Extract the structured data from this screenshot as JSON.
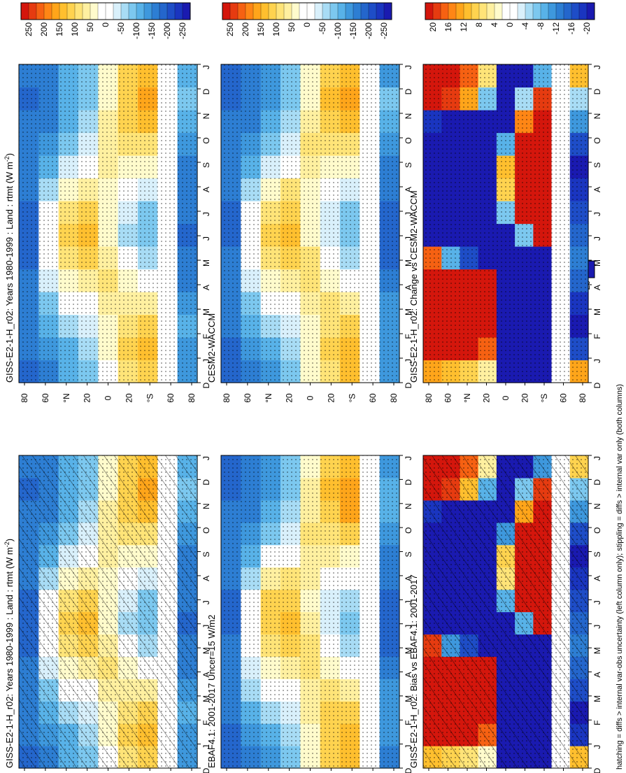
{
  "figure": {
    "footnote": "hatching = diffs > internal var-obs uncertainty (left column only); stippling = diffs > internal var only (both columns)"
  },
  "colors": {
    "positive_ramp": [
      "#ffffff",
      "#fffbcc",
      "#fff0a0",
      "#ffe478",
      "#ffd34f",
      "#ffbf2e",
      "#ffa51a",
      "#ff8615",
      "#f66112",
      "#e63b10",
      "#d4160c"
    ],
    "negative_ramp": [
      "#ffffff",
      "#d9f0fb",
      "#a8dcf5",
      "#7cc8ef",
      "#58b2e8",
      "#3e98dd",
      "#2d7ed3",
      "#2466cc",
      "#1e4dc7",
      "#1a35c0",
      "#1a1ab0"
    ]
  },
  "colorbars": {
    "absolute": {
      "labels": [
        "250",
        "200",
        "150",
        "100",
        "50",
        "0",
        "-50",
        "-100",
        "-150",
        "-200",
        "-250"
      ]
    },
    "difference": {
      "labels": [
        "20",
        "16",
        "12",
        "8",
        "4",
        "0",
        "-4",
        "-8",
        "-12",
        "-16",
        "-20"
      ]
    }
  },
  "axes": {
    "months": [
      "D",
      "J",
      "F",
      "M",
      "A",
      "M",
      "J",
      "J",
      "A",
      "S",
      "O",
      "N",
      "D",
      "J"
    ],
    "lat_labels": [
      "80",
      "60",
      "°N",
      "20",
      "0",
      "20",
      "°S",
      "60",
      "80"
    ]
  },
  "chart_data": [
    {
      "type": "heatmap",
      "panel": "top-left",
      "title": "GISS-E2-1-H_r02: Years 1980-1999 : Land : rtmt (W m",
      "title_sup": "-2",
      "title_end": ")",
      "x": [
        "D",
        "J",
        "F",
        "M",
        "A",
        "M",
        "J",
        "J",
        "A",
        "S",
        "O",
        "N",
        "D",
        "J"
      ],
      "y": [
        80,
        60,
        40,
        20,
        0,
        -20,
        -40,
        -60,
        -80
      ],
      "z": [
        [
          -180,
          -170,
          -165,
          -150,
          -160,
          -175,
          -190,
          -185,
          -170,
          -160,
          -150,
          -165,
          -180,
          -170
        ],
        [
          -150,
          -130,
          -110,
          -80,
          -40,
          -10,
          0,
          -20,
          -60,
          -100,
          -130,
          -150,
          -160,
          -150
        ],
        [
          -120,
          -100,
          -70,
          -20,
          30,
          80,
          110,
          90,
          40,
          -30,
          -80,
          -110,
          -120,
          -120
        ],
        [
          -80,
          -60,
          -30,
          10,
          60,
          100,
          130,
          110,
          70,
          10,
          -40,
          -70,
          -80,
          -80
        ],
        [
          20,
          30,
          40,
          60,
          80,
          70,
          40,
          30,
          40,
          60,
          70,
          60,
          40,
          30
        ],
        [
          90,
          100,
          90,
          70,
          30,
          -20,
          -50,
          -40,
          0,
          40,
          80,
          110,
          120,
          100
        ],
        [
          120,
          130,
          110,
          60,
          0,
          -60,
          -90,
          -80,
          -30,
          30,
          90,
          140,
          160,
          130
        ],
        [
          null,
          null,
          null,
          null,
          null,
          null,
          null,
          null,
          null,
          null,
          null,
          null,
          null,
          null
        ],
        [
          -140,
          -130,
          -120,
          -130,
          -150,
          -170,
          -180,
          -170,
          -160,
          -150,
          -130,
          -100,
          -90,
          -120
        ]
      ],
      "zlim": [
        -275,
        275
      ]
    },
    {
      "type": "heatmap",
      "panel": "top-right",
      "title": "GISS-E2-1-H_r02: Years 1980-1999 : Land : rtmt (W m",
      "title_sup": "-2",
      "title_end": ")",
      "x": [
        "D",
        "J",
        "F",
        "M",
        "A",
        "M",
        "J",
        "J",
        "A",
        "S",
        "O",
        "N",
        "D",
        "J"
      ],
      "y": [
        80,
        60,
        40,
        20,
        0,
        -20,
        -40,
        -60,
        -80
      ],
      "z": [
        [
          -180,
          -170,
          -165,
          -150,
          -160,
          -175,
          -190,
          -185,
          -170,
          -160,
          -150,
          -165,
          -180,
          -170
        ],
        [
          -150,
          -130,
          -110,
          -80,
          -40,
          -10,
          0,
          -20,
          -60,
          -100,
          -130,
          -150,
          -160,
          -150
        ],
        [
          -120,
          -100,
          -70,
          -20,
          30,
          80,
          110,
          90,
          40,
          -30,
          -80,
          -110,
          -120,
          -120
        ],
        [
          -80,
          -60,
          -30,
          10,
          60,
          100,
          130,
          110,
          70,
          10,
          -40,
          -70,
          -80,
          -80
        ],
        [
          20,
          30,
          40,
          60,
          80,
          70,
          40,
          30,
          40,
          60,
          70,
          60,
          40,
          30
        ],
        [
          90,
          100,
          90,
          70,
          30,
          -20,
          -50,
          -40,
          0,
          40,
          80,
          110,
          120,
          100
        ],
        [
          120,
          130,
          110,
          60,
          0,
          -60,
          -90,
          -80,
          -30,
          30,
          90,
          140,
          160,
          130
        ],
        [
          null,
          null,
          null,
          null,
          null,
          null,
          null,
          null,
          null,
          null,
          null,
          null,
          null,
          null
        ],
        [
          -140,
          -130,
          -120,
          -130,
          -150,
          -170,
          -180,
          -170,
          -160,
          -150,
          -130,
          -100,
          -90,
          -120
        ]
      ],
      "zlim": [
        -275,
        275
      ]
    },
    {
      "type": "heatmap",
      "panel": "middle-left",
      "title": "EBAF4.1: 2001-2017 Uncer=15 W/m2",
      "x": [
        "D",
        "J",
        "F",
        "M",
        "A",
        "M",
        "J",
        "J",
        "A",
        "S",
        "O",
        "N",
        "D",
        "J"
      ],
      "y": [
        80,
        60,
        40,
        20,
        0,
        -20,
        -40,
        -60,
        -80
      ],
      "z": [
        [
          -190,
          -180,
          -170,
          -150,
          -155,
          -170,
          -185,
          -180,
          -170,
          -160,
          -155,
          -170,
          -185,
          -180
        ],
        [
          -160,
          -140,
          -110,
          -70,
          -30,
          0,
          10,
          -10,
          -50,
          -100,
          -135,
          -155,
          -165,
          -160
        ],
        [
          -130,
          -110,
          -70,
          -10,
          40,
          90,
          120,
          100,
          50,
          -20,
          -80,
          -115,
          -130,
          -130
        ],
        [
          -90,
          -70,
          -30,
          20,
          70,
          110,
          140,
          120,
          80,
          20,
          -30,
          -70,
          -90,
          -90
        ],
        [
          30,
          40,
          50,
          70,
          90,
          80,
          50,
          40,
          50,
          70,
          80,
          70,
          50,
          40
        ],
        [
          100,
          110,
          100,
          80,
          40,
          -10,
          -40,
          -30,
          10,
          50,
          90,
          120,
          130,
          110
        ],
        [
          130,
          140,
          120,
          70,
          10,
          -50,
          -80,
          -70,
          -20,
          40,
          100,
          150,
          170,
          140
        ],
        [
          null,
          null,
          null,
          null,
          null,
          null,
          null,
          null,
          null,
          null,
          null,
          null,
          null,
          null
        ],
        [
          -150,
          -140,
          -130,
          -140,
          -160,
          -180,
          -190,
          -180,
          -170,
          -160,
          -140,
          -110,
          -100,
          -130
        ]
      ],
      "zlim": [
        -275,
        275
      ]
    },
    {
      "type": "heatmap",
      "panel": "middle-right",
      "title": "CESM2-WACCM",
      "x": [
        "D",
        "J",
        "F",
        "M",
        "A",
        "M",
        "J",
        "J",
        "A",
        "S",
        "O",
        "N",
        "D",
        "J"
      ],
      "y": [
        80,
        60,
        40,
        20,
        0,
        -20,
        -40,
        -60,
        -80
      ],
      "z": [
        [
          -185,
          -175,
          -168,
          -150,
          -158,
          -172,
          -188,
          -182,
          -170,
          -160,
          -152,
          -168,
          -182,
          -175
        ],
        [
          -155,
          -135,
          -110,
          -75,
          -35,
          -5,
          5,
          -15,
          -55,
          -100,
          -132,
          -152,
          -162,
          -155
        ],
        [
          -125,
          -105,
          -70,
          -15,
          35,
          85,
          115,
          95,
          45,
          -25,
          -80,
          -112,
          -125,
          -125
        ],
        [
          -85,
          -65,
          -30,
          15,
          65,
          105,
          135,
          115,
          75,
          15,
          -35,
          -70,
          -85,
          -85
        ],
        [
          25,
          35,
          45,
          65,
          85,
          75,
          45,
          35,
          45,
          65,
          75,
          65,
          45,
          35
        ],
        [
          95,
          105,
          95,
          75,
          35,
          -15,
          -45,
          -35,
          5,
          45,
          85,
          115,
          125,
          105
        ],
        [
          125,
          135,
          115,
          65,
          5,
          -55,
          -85,
          -75,
          -25,
          35,
          95,
          145,
          165,
          135
        ],
        [
          null,
          null,
          null,
          null,
          null,
          null,
          null,
          null,
          null,
          null,
          null,
          null,
          null,
          null
        ],
        [
          -145,
          -135,
          -125,
          -135,
          -155,
          -175,
          -185,
          -175,
          -165,
          -155,
          -135,
          -105,
          -95,
          -125
        ]
      ],
      "zlim": [
        -275,
        275
      ]
    },
    {
      "type": "heatmap",
      "panel": "bottom-left",
      "title": "GISS-E2-1-H_r02: Bias vs EBAF4.1: 2001-2017",
      "x": [
        "D",
        "J",
        "F",
        "M",
        "A",
        "M",
        "J",
        "J",
        "A",
        "S",
        "O",
        "N",
        "D",
        "J"
      ],
      "y": [
        80,
        60,
        40,
        20,
        0,
        -20,
        -40,
        -60,
        -80
      ],
      "z": [
        [
          10,
          22,
          24,
          22,
          20,
          18,
          -22,
          -22,
          -22,
          -22,
          -20,
          -18,
          20,
          22
        ],
        [
          8,
          22,
          24,
          22,
          22,
          -10,
          -22,
          -22,
          -22,
          -22,
          -22,
          -20,
          18,
          20
        ],
        [
          6,
          20,
          22,
          22,
          22,
          -16,
          -22,
          -22,
          -22,
          -22,
          -22,
          -22,
          10,
          16
        ],
        [
          2,
          16,
          20,
          22,
          20,
          -20,
          -22,
          -22,
          -22,
          -22,
          -22,
          -22,
          -8,
          4
        ],
        [
          -22,
          -22,
          -22,
          -22,
          -22,
          -22,
          -20,
          -8,
          6,
          8,
          -10,
          -20,
          -22,
          -22
        ],
        [
          -22,
          -22,
          -22,
          -22,
          -22,
          -22,
          -8,
          22,
          22,
          22,
          22,
          12,
          -6,
          -20
        ],
        [
          -22,
          -22,
          -22,
          -22,
          -22,
          -20,
          20,
          22,
          22,
          22,
          22,
          22,
          18,
          -10
        ],
        [
          null,
          null,
          null,
          null,
          null,
          null,
          null,
          null,
          null,
          null,
          null,
          null,
          null,
          null
        ],
        [
          10,
          -18,
          -20,
          -16,
          -14,
          -12,
          -14,
          -16,
          -18,
          -20,
          -16,
          -10,
          -6,
          8
        ]
      ],
      "zlim": [
        -22,
        22
      ]
    },
    {
      "type": "heatmap",
      "panel": "bottom-right",
      "title": "GISS-E2-1-H_r02: Change vs CESM2-WACCM",
      "x": [
        "D",
        "J",
        "F",
        "M",
        "A",
        "M",
        "J",
        "J",
        "A",
        "S",
        "O",
        "N",
        "D",
        "J"
      ],
      "y": [
        80,
        60,
        40,
        20,
        0,
        -20,
        -40,
        -60,
        -80
      ],
      "z": [
        [
          12,
          22,
          24,
          22,
          20,
          16,
          -22,
          -22,
          -22,
          -22,
          -22,
          -18,
          20,
          22
        ],
        [
          10,
          22,
          24,
          22,
          22,
          -8,
          -22,
          -22,
          -22,
          -22,
          -22,
          -20,
          18,
          20
        ],
        [
          8,
          20,
          22,
          22,
          22,
          -16,
          -22,
          -22,
          -22,
          -22,
          -22,
          -22,
          12,
          16
        ],
        [
          4,
          16,
          20,
          22,
          20,
          -20,
          -22,
          -22,
          -22,
          -22,
          -22,
          -22,
          -6,
          6
        ],
        [
          -22,
          -22,
          -22,
          -22,
          -22,
          -22,
          -20,
          -6,
          8,
          10,
          -8,
          -20,
          -22,
          -22
        ],
        [
          -22,
          -22,
          -22,
          -22,
          -22,
          -22,
          -6,
          22,
          22,
          22,
          22,
          14,
          -4,
          -20
        ],
        [
          -22,
          -22,
          -22,
          -22,
          -22,
          -20,
          20,
          22,
          22,
          22,
          22,
          22,
          18,
          -8
        ],
        [
          null,
          null,
          null,
          null,
          null,
          null,
          null,
          null,
          null,
          null,
          null,
          null,
          null,
          null
        ],
        [
          12,
          -16,
          -20,
          -18,
          -14,
          -12,
          -14,
          -16,
          -18,
          -20,
          -16,
          -10,
          -4,
          10
        ]
      ],
      "zlim": [
        -22,
        22
      ]
    }
  ]
}
